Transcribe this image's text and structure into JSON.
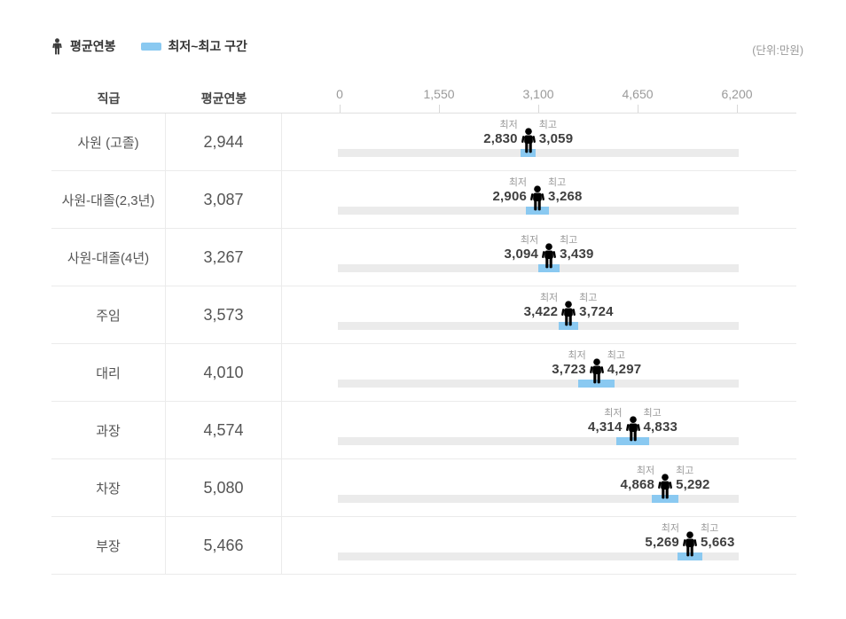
{
  "legend": {
    "avg_label": "평균연봉",
    "range_label": "최저~최고 구간"
  },
  "unit_note": "(단위:만원)",
  "columns": {
    "grade": "직급",
    "avg": "평균연봉"
  },
  "marker_labels": {
    "min": "최저",
    "max": "최고"
  },
  "axis": {
    "min": 0,
    "max": 6200,
    "ticks": [
      0,
      1550,
      3100,
      4650,
      6200
    ],
    "tick_labels": [
      "0",
      "1,550",
      "3,100",
      "4,650",
      "6,200"
    ]
  },
  "colors": {
    "range_blue": "#8AC9F1",
    "track_gray": "#EBEBEB",
    "person_dark": "#3D3D3D"
  },
  "rows": [
    {
      "grade": "사원 (고졸)",
      "avg_text": "2,944",
      "min_text": "2,830",
      "max_text": "3,059",
      "avg": 2944,
      "min": 2830,
      "max": 3059
    },
    {
      "grade": "사원-대졸(2,3년)",
      "avg_text": "3,087",
      "min_text": "2,906",
      "max_text": "3,268",
      "avg": 3087,
      "min": 2906,
      "max": 3268
    },
    {
      "grade": "사원-대졸(4년)",
      "avg_text": "3,267",
      "min_text": "3,094",
      "max_text": "3,439",
      "avg": 3267,
      "min": 3094,
      "max": 3439
    },
    {
      "grade": "주임",
      "avg_text": "3,573",
      "min_text": "3,422",
      "max_text": "3,724",
      "avg": 3573,
      "min": 3422,
      "max": 3724
    },
    {
      "grade": "대리",
      "avg_text": "4,010",
      "min_text": "3,723",
      "max_text": "4,297",
      "avg": 4010,
      "min": 3723,
      "max": 4297
    },
    {
      "grade": "과장",
      "avg_text": "4,574",
      "min_text": "4,314",
      "max_text": "4,833",
      "avg": 4574,
      "min": 4314,
      "max": 4833
    },
    {
      "grade": "차장",
      "avg_text": "5,080",
      "min_text": "4,868",
      "max_text": "5,292",
      "avg": 5080,
      "min": 4868,
      "max": 5292
    },
    {
      "grade": "부장",
      "avg_text": "5,466",
      "min_text": "5,269",
      "max_text": "5,663",
      "avg": 5466,
      "min": 5269,
      "max": 5663
    }
  ],
  "chart_data": {
    "type": "bar",
    "subtype": "horizontal-range-bar-with-average-marker",
    "title": "",
    "unit_label": "(단위:만원)",
    "categories": [
      "사원 (고졸)",
      "사원-대졸(2,3년)",
      "사원-대졸(4년)",
      "주임",
      "대리",
      "과장",
      "차장",
      "부장"
    ],
    "series": [
      {
        "name": "평균연봉",
        "values": [
          2944,
          3087,
          3267,
          3573,
          4010,
          4574,
          5080,
          5466
        ]
      },
      {
        "name": "최저",
        "values": [
          2830,
          2906,
          3094,
          3422,
          3723,
          4314,
          4868,
          5269
        ]
      },
      {
        "name": "최고",
        "values": [
          3059,
          3268,
          3439,
          3724,
          4297,
          4833,
          5292,
          5663
        ]
      }
    ],
    "xlim": [
      0,
      6200
    ],
    "x_ticks": [
      0,
      1550,
      3100,
      4650,
      6200
    ],
    "legend_entries": [
      "평균연봉",
      "최저~최고 구간"
    ],
    "legend_position": "top-left",
    "grid": false
  }
}
